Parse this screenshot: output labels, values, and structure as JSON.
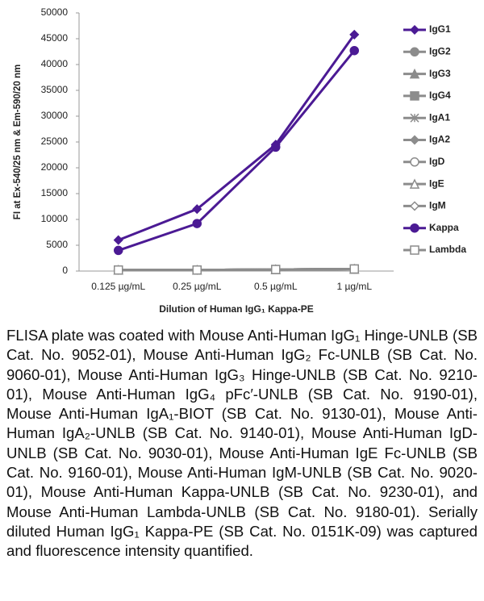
{
  "chart_data": {
    "type": "line",
    "y_label": "FI at Ex-540/25 nm & Em-590/20 nm",
    "x_label": "Dilution of Human IgG₁ Kappa-PE",
    "categories": [
      "0.125 µg/mL",
      "0.25 µg/mL",
      "0.5 µg/mL",
      "1 µg/mL"
    ],
    "ylim": [
      0,
      50000
    ],
    "yticks": [
      0,
      5000,
      10000,
      15000,
      20000,
      25000,
      30000,
      35000,
      40000,
      45000,
      50000
    ],
    "series": [
      {
        "name": "IgG1",
        "color": "#4b1a94",
        "marker": "diamond",
        "values": [
          6000,
          12000,
          24500,
          45800
        ]
      },
      {
        "name": "IgG2",
        "color": "#8c8c8c",
        "marker": "circle",
        "values": [
          200,
          200,
          300,
          400
        ]
      },
      {
        "name": "IgG3",
        "color": "#8c8c8c",
        "marker": "triangle",
        "values": [
          200,
          200,
          300,
          400
        ]
      },
      {
        "name": "IgG4",
        "color": "#8c8c8c",
        "marker": "square",
        "values": [
          200,
          200,
          300,
          400
        ]
      },
      {
        "name": "IgA1",
        "color": "#8c8c8c",
        "marker": "star",
        "values": [
          200,
          200,
          300,
          400
        ]
      },
      {
        "name": "IgA2",
        "color": "#8c8c8c",
        "marker": "diamond",
        "values": [
          200,
          200,
          300,
          400
        ]
      },
      {
        "name": "IgD",
        "color": "#8c8c8c",
        "marker": "open-circle",
        "values": [
          200,
          200,
          300,
          400
        ]
      },
      {
        "name": "IgE",
        "color": "#8c8c8c",
        "marker": "open-triangle",
        "values": [
          200,
          200,
          300,
          400
        ]
      },
      {
        "name": "IgM",
        "color": "#8c8c8c",
        "marker": "open-diamond",
        "values": [
          200,
          200,
          300,
          400
        ]
      },
      {
        "name": "Kappa",
        "color": "#4b1a94",
        "marker": "circle",
        "values": [
          4000,
          9200,
          24000,
          42700
        ]
      },
      {
        "name": "Lambda",
        "color": "#8c8c8c",
        "marker": "open-square",
        "values": [
          200,
          200,
          300,
          400
        ]
      }
    ],
    "caption": "FLISA plate was coated with Mouse Anti-Human IgG₁ Hinge-UNLB (SB Cat. No. 9052-01), Mouse Anti-Human IgG₂ Fc-UNLB (SB Cat. No. 9060-01), Mouse Anti-Human IgG₃ Hinge-UNLB (SB Cat. No. 9210-01), Mouse Anti-Human IgG₄ pFc′-UNLB (SB Cat. No. 9190-01), Mouse Anti-Human IgA₁-BIOT (SB Cat. No. 9130-01), Mouse Anti-Human IgA₂-UNLB (SB Cat. No. 9140-01), Mouse Anti-Human IgD-UNLB (SB Cat. No. 9030-01), Mouse Anti-Human IgE Fc-UNLB (SB Cat. No. 9160-01), Mouse Anti-Human IgM-UNLB (SB Cat. No. 9020-01), Mouse Anti-Human Kappa-UNLB (SB Cat. No. 9230-01), and Mouse Anti-Human Lambda-UNLB (SB Cat. No. 9180-01). Serially diluted Human IgG₁ Kappa-PE (SB Cat. No. 0151K-09) was captured and fluorescence intensity quantified."
  }
}
